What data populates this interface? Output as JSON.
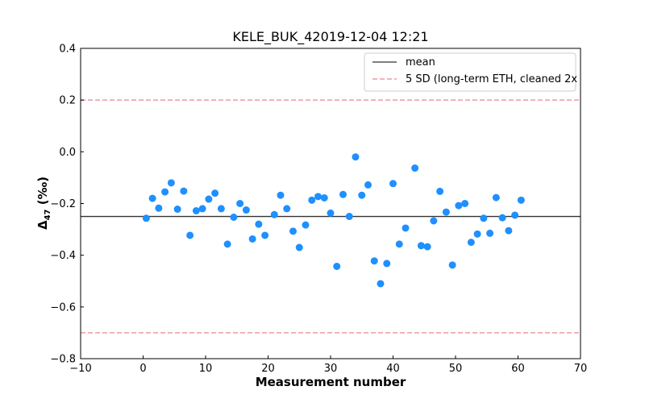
{
  "chart_data": {
    "type": "scatter",
    "title": "KELE_BUK_42019-12-04 12:21",
    "xlabel": "Measurement number",
    "ylabel_main": "Δ",
    "ylabel_sub": "47",
    "ylabel_unit": " (‰)",
    "xlim": [
      -10,
      70
    ],
    "ylim": [
      -0.8,
      0.4
    ],
    "xticks": [
      -10,
      0,
      10,
      20,
      30,
      40,
      50,
      60,
      70
    ],
    "xtick_labels": [
      "−10",
      "0",
      "10",
      "20",
      "30",
      "40",
      "50",
      "60",
      "70"
    ],
    "yticks": [
      -0.8,
      -0.6,
      -0.4,
      -0.2,
      0.0,
      0.2,
      0.4
    ],
    "ytick_labels": [
      "−0.8",
      "−0.6",
      "−0.4",
      "−0.2",
      "0.0",
      "0.2",
      "0.4"
    ],
    "grid": false,
    "legend_position": "top-right",
    "colors": {
      "points": "#1e90ff",
      "mean": "#333333",
      "sd": "#ee9aa3"
    },
    "mean": -0.25,
    "sd_bounds": [
      0.2,
      -0.7
    ],
    "series": [
      {
        "marker": "circle",
        "x": [
          0.5,
          1.5,
          2.5,
          3.5,
          4.5,
          5.5,
          6.5,
          7.5,
          8.5,
          9.5,
          10.5,
          11.5,
          12.5,
          13.5,
          14.5,
          15.5,
          16.5,
          17.5,
          18.5,
          19.5,
          21,
          22,
          23,
          24,
          25,
          26,
          27,
          28,
          29,
          30,
          31,
          32,
          33,
          34,
          35,
          36,
          37,
          38,
          39,
          40,
          41,
          42,
          43.5,
          44.5,
          45.5,
          46.5,
          47.5,
          48.5,
          49.5,
          50.5,
          51.5,
          52.5,
          53.5,
          54.5,
          55.5,
          56.5,
          57.5,
          58.5,
          59.5,
          60.5
        ],
        "y": [
          -0.257,
          -0.18,
          -0.218,
          -0.155,
          -0.12,
          -0.222,
          -0.152,
          -0.323,
          -0.228,
          -0.22,
          -0.183,
          -0.16,
          -0.22,
          -0.357,
          -0.253,
          -0.2,
          -0.225,
          -0.337,
          -0.28,
          -0.323,
          -0.243,
          -0.168,
          -0.22,
          -0.307,
          -0.37,
          -0.283,
          -0.187,
          -0.173,
          -0.178,
          -0.237,
          -0.443,
          -0.165,
          -0.25,
          -0.02,
          -0.168,
          -0.128,
          -0.422,
          -0.51,
          -0.432,
          -0.123,
          -0.357,
          -0.295,
          -0.063,
          -0.363,
          -0.367,
          -0.267,
          -0.153,
          -0.233,
          -0.438,
          -0.208,
          -0.2,
          -0.35,
          -0.318,
          -0.257,
          -0.315,
          -0.177,
          -0.255,
          -0.305,
          -0.245,
          -0.187
        ]
      }
    ],
    "lines": [
      {
        "name": "mean",
        "style": "solid",
        "y": [
          -0.25
        ]
      },
      {
        "name": "5 SD (long-term ETH, cleaned 2x",
        "style": "dashed",
        "y": [
          0.2,
          -0.7
        ]
      }
    ]
  }
}
